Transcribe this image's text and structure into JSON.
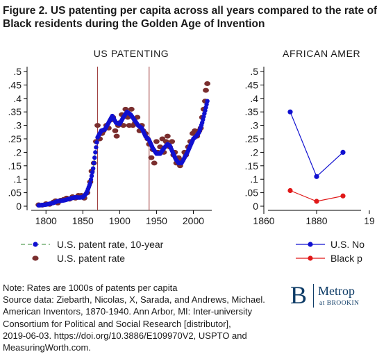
{
  "header": {
    "title_line1": "Figure 2. US patenting per capita across all years compared to the rate of",
    "title_line2": "Black residents during the Golden Age of Invention"
  },
  "colors": {
    "blue": "#1010d0",
    "maroon": "#7a2e2e",
    "red": "#e01818",
    "ref_line": "#a04040",
    "green_dash": "#5aa05a"
  },
  "chart_data": [
    {
      "type": "scatter",
      "title": "US PATENTING",
      "xlim": [
        1780,
        2025
      ],
      "ylim": [
        0,
        0.5
      ],
      "xticks": [
        "1800",
        "1850",
        "1900",
        "1950",
        "2000"
      ],
      "yticks": [
        "0",
        ".05",
        ".1",
        ".15",
        ".2",
        ".25",
        ".3",
        ".35",
        ".4",
        ".45",
        ".5"
      ],
      "reference_lines_x": [
        1870,
        1940
      ],
      "series": [
        {
          "name": "U.S. patent rate, 10-year",
          "marker": "dot",
          "points": [
            [
              1790,
              0.003
            ],
            [
              1800,
              0.006
            ],
            [
              1810,
              0.012
            ],
            [
              1815,
              0.018
            ],
            [
              1820,
              0.02
            ],
            [
              1825,
              0.022
            ],
            [
              1830,
              0.026
            ],
            [
              1835,
              0.03
            ],
            [
              1840,
              0.033
            ],
            [
              1845,
              0.032
            ],
            [
              1850,
              0.033
            ],
            [
              1855,
              0.048
            ],
            [
              1860,
              0.085
            ],
            [
              1864,
              0.14
            ],
            [
              1867,
              0.2
            ],
            [
              1870,
              0.255
            ],
            [
              1875,
              0.28
            ],
            [
              1880,
              0.285
            ],
            [
              1885,
              0.31
            ],
            [
              1890,
              0.335
            ],
            [
              1895,
              0.31
            ],
            [
              1900,
              0.305
            ],
            [
              1905,
              0.33
            ],
            [
              1910,
              0.35
            ],
            [
              1915,
              0.34
            ],
            [
              1920,
              0.32
            ],
            [
              1925,
              0.3
            ],
            [
              1930,
              0.29
            ],
            [
              1935,
              0.26
            ],
            [
              1940,
              0.245
            ],
            [
              1945,
              0.215
            ],
            [
              1950,
              0.195
            ],
            [
              1955,
              0.195
            ],
            [
              1960,
              0.215
            ],
            [
              1965,
              0.23
            ],
            [
              1968,
              0.225
            ],
            [
              1972,
              0.2
            ],
            [
              1976,
              0.175
            ],
            [
              1980,
              0.16
            ],
            [
              1984,
              0.16
            ],
            [
              1988,
              0.18
            ],
            [
              1992,
              0.2
            ],
            [
              1996,
              0.225
            ],
            [
              2000,
              0.25
            ],
            [
              2004,
              0.26
            ],
            [
              2008,
              0.275
            ],
            [
              2012,
              0.31
            ],
            [
              2016,
              0.355
            ],
            [
              2019,
              0.39
            ]
          ]
        },
        {
          "name": "U.S. patent rate",
          "marker": "ellipse",
          "points": [
            [
              1790,
              0.005
            ],
            [
              1795,
              0.004
            ],
            [
              1800,
              0.009
            ],
            [
              1805,
              0.007
            ],
            [
              1810,
              0.015
            ],
            [
              1813,
              0.02
            ],
            [
              1816,
              0.012
            ],
            [
              1820,
              0.022
            ],
            [
              1824,
              0.025
            ],
            [
              1828,
              0.03
            ],
            [
              1832,
              0.026
            ],
            [
              1836,
              0.035
            ],
            [
              1840,
              0.03
            ],
            [
              1844,
              0.04
            ],
            [
              1848,
              0.04
            ],
            [
              1852,
              0.03
            ],
            [
              1856,
              0.05
            ],
            [
              1860,
              0.09
            ],
            [
              1862,
              0.13
            ],
            [
              1865,
              0.16
            ],
            [
              1868,
              0.24
            ],
            [
              1870,
              0.3
            ],
            [
              1873,
              0.25
            ],
            [
              1876,
              0.27
            ],
            [
              1878,
              0.28
            ],
            [
              1882,
              0.3
            ],
            [
              1885,
              0.29
            ],
            [
              1888,
              0.32
            ],
            [
              1891,
              0.33
            ],
            [
              1894,
              0.28
            ],
            [
              1896,
              0.26
            ],
            [
              1898,
              0.3
            ],
            [
              1900,
              0.31
            ],
            [
              1903,
              0.34
            ],
            [
              1905,
              0.3
            ],
            [
              1908,
              0.36
            ],
            [
              1911,
              0.33
            ],
            [
              1913,
              0.3
            ],
            [
              1916,
              0.36
            ],
            [
              1918,
              0.3
            ],
            [
              1921,
              0.31
            ],
            [
              1924,
              0.33
            ],
            [
              1927,
              0.28
            ],
            [
              1930,
              0.3
            ],
            [
              1932,
              0.28
            ],
            [
              1935,
              0.27
            ],
            [
              1938,
              0.25
            ],
            [
              1940,
              0.23
            ],
            [
              1943,
              0.18
            ],
            [
              1945,
              0.21
            ],
            [
              1947,
              0.16
            ],
            [
              1950,
              0.24
            ],
            [
              1952,
              0.2
            ],
            [
              1955,
              0.22
            ],
            [
              1958,
              0.25
            ],
            [
              1960,
              0.2
            ],
            [
              1963,
              0.24
            ],
            [
              1965,
              0.26
            ],
            [
              1968,
              0.22
            ],
            [
              1971,
              0.24
            ],
            [
              1973,
              0.19
            ],
            [
              1975,
              0.2
            ],
            [
              1977,
              0.16
            ],
            [
              1980,
              0.18
            ],
            [
              1982,
              0.15
            ],
            [
              1985,
              0.17
            ],
            [
              1988,
              0.2
            ],
            [
              1990,
              0.19
            ],
            [
              1993,
              0.22
            ],
            [
              1996,
              0.24
            ],
            [
              1999,
              0.27
            ],
            [
              2002,
              0.28
            ],
            [
              2005,
              0.26
            ],
            [
              2008,
              0.28
            ],
            [
              2010,
              0.29
            ],
            [
              2012,
              0.33
            ],
            [
              2014,
              0.36
            ],
            [
              2016,
              0.39
            ],
            [
              2017,
              0.43
            ],
            [
              2019,
              0.455
            ]
          ]
        }
      ]
    },
    {
      "type": "line",
      "title": "AFRICAN AMER",
      "xlim": [
        1855,
        1945
      ],
      "ylim": [
        0,
        0.5
      ],
      "xticks": [
        "1860",
        "1880",
        "19"
      ],
      "yticks": [
        "0",
        ".05",
        ".1",
        ".15",
        ".2",
        ".25",
        ".3",
        ".35",
        ".4",
        ".45",
        ".5"
      ],
      "series": [
        {
          "name": "U.S. No",
          "points": [
            [
              1870,
              0.35
            ],
            [
              1880,
              0.11
            ],
            [
              1890,
              0.2
            ]
          ]
        },
        {
          "name": "Black p",
          "points": [
            [
              1870,
              0.058
            ],
            [
              1880,
              0.018
            ],
            [
              1890,
              0.038
            ]
          ]
        }
      ]
    }
  ],
  "note": {
    "line1": "Note: Rates are 1000s of patents per capita",
    "line2": "Source data: Ziebarth, Nicolas, X, Sarada, and Andrews, Michael.",
    "line3": "American Inventors, 1870-1940. Ann Arbor, MI: Inter-university",
    "line4": "Consortium for Political and Social Research [distributor],",
    "line5": "2019-06-03. https://doi.org/10.3886/E109970V2, USPTO and",
    "line6": "MeasuringWorth.com."
  },
  "logo": {
    "mark": "B",
    "name": "Metrop",
    "sub": "at BROOKIN"
  }
}
